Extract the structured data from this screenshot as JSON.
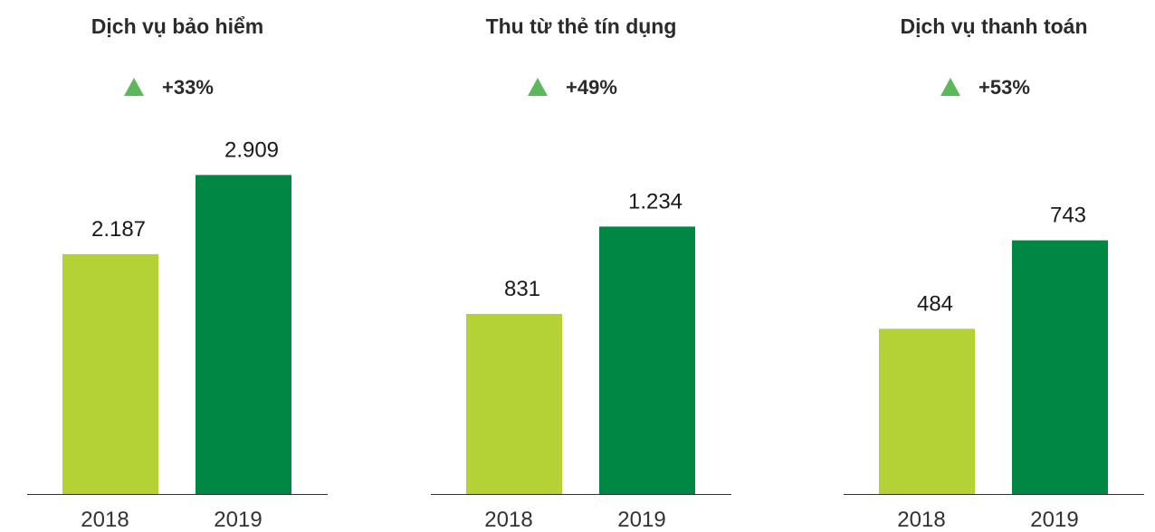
{
  "colors": {
    "bar_2018": "#b4d235",
    "bar_2019": "#008744",
    "up_arrow": "#5cb85c",
    "baseline": "#333333"
  },
  "icons": {
    "change_indicator": "triangle-up-icon"
  },
  "chart_data": [
    {
      "type": "bar",
      "title": "Dịch vụ bảo hiểm",
      "change_label": "+33%",
      "categories": [
        "2018",
        "2019"
      ],
      "values": [
        2187,
        2909
      ],
      "value_labels": [
        "2.187",
        "2.909"
      ],
      "ylim": [
        0,
        3300
      ],
      "grid": false
    },
    {
      "type": "bar",
      "title": "Thu từ thẻ tín dụng",
      "change_label": "+49%",
      "categories": [
        "2018",
        "2019"
      ],
      "values": [
        831,
        1234
      ],
      "value_labels": [
        "831",
        "1.234"
      ],
      "ylim": [
        0,
        1670
      ],
      "grid": false
    },
    {
      "type": "bar",
      "title": "Dịch vụ thanh toán",
      "change_label": "+53%",
      "categories": [
        "2018",
        "2019"
      ],
      "values": [
        484,
        743
      ],
      "value_labels": [
        "484",
        "743"
      ],
      "ylim": [
        0,
        1060
      ],
      "grid": false
    }
  ]
}
